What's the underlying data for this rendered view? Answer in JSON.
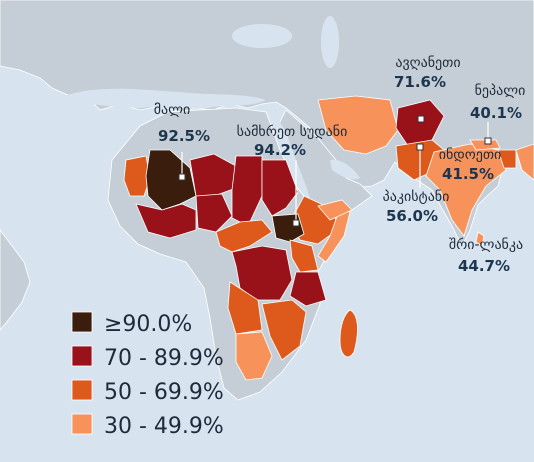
{
  "colors": {
    "ocean": "#d7e4ef",
    "land": "#c5ced6",
    "border": "#ffffff",
    "c90": "#3b1d0e",
    "c70": "#9a1219",
    "c50": "#de5a1c",
    "c30": "#f7925b"
  },
  "legend": [
    {
      "label": "≥90.0%",
      "color_key": "c90"
    },
    {
      "label": "70 - 89.9%",
      "color_key": "c70"
    },
    {
      "label": "50 - 69.9%",
      "color_key": "c50"
    },
    {
      "label": "30 - 49.9%",
      "color_key": "c30"
    }
  ],
  "labels": {
    "mali": {
      "name": "მალი",
      "value": "92.5%"
    },
    "south_sudan": {
      "name": "სამხრეთ სუდანი",
      "value": "94.2%"
    },
    "afghanistan": {
      "name": "ავღანეთი",
      "value": "71.6%"
    },
    "nepal": {
      "name": "ნეპალი",
      "value": "40.1%"
    },
    "pakistan": {
      "name": "პაკისტანი",
      "value": "56.0%"
    },
    "india": {
      "name": "ინდოეთი",
      "value": "41.5%"
    },
    "sri_lanka": {
      "name": "შრი-ლანკა",
      "value": "44.7%"
    }
  }
}
